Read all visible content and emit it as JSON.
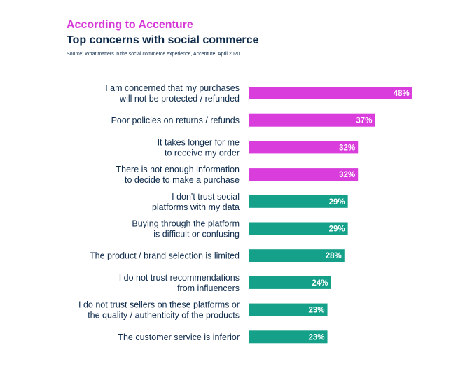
{
  "header": {
    "eyebrow": "According to Accenture",
    "title": "Top concerns with social commerce",
    "source": "Source; What matters in the social commerce experience, Accenture, April 2020"
  },
  "colors": {
    "highlight": "#d93ddb",
    "standard": "#15a08a"
  },
  "chart_data": {
    "type": "bar",
    "orientation": "horizontal",
    "title": "Top concerns with social commerce",
    "xlabel": "",
    "ylabel": "",
    "xlim": [
      0,
      50
    ],
    "grid": false,
    "categories": [
      [
        "I am concerned that my purchases",
        "will not be protected / refunded"
      ],
      [
        "Poor policies on returns / refunds"
      ],
      [
        "It takes longer for me",
        "to receive my order"
      ],
      [
        "There is not enough information",
        "to decide to make a purchase"
      ],
      [
        "I don't trust social",
        "platforms with my data"
      ],
      [
        "Buying through the platform",
        "is difficult or confusing"
      ],
      [
        "The product / brand selection is limited"
      ],
      [
        "I do not trust recommendations",
        "from influencers"
      ],
      [
        "I do not trust sellers on these platforms or",
        "the quality / authenticity of the products"
      ],
      [
        "The customer service is inferior"
      ]
    ],
    "values": [
      48,
      37,
      32,
      32,
      29,
      29,
      28,
      24,
      23,
      23
    ],
    "value_labels": [
      "48%",
      "37%",
      "32%",
      "32%",
      "29%",
      "29%",
      "28%",
      "24%",
      "23%",
      "23%"
    ],
    "highlight": [
      true,
      true,
      true,
      true,
      false,
      false,
      false,
      false,
      false,
      false
    ]
  }
}
